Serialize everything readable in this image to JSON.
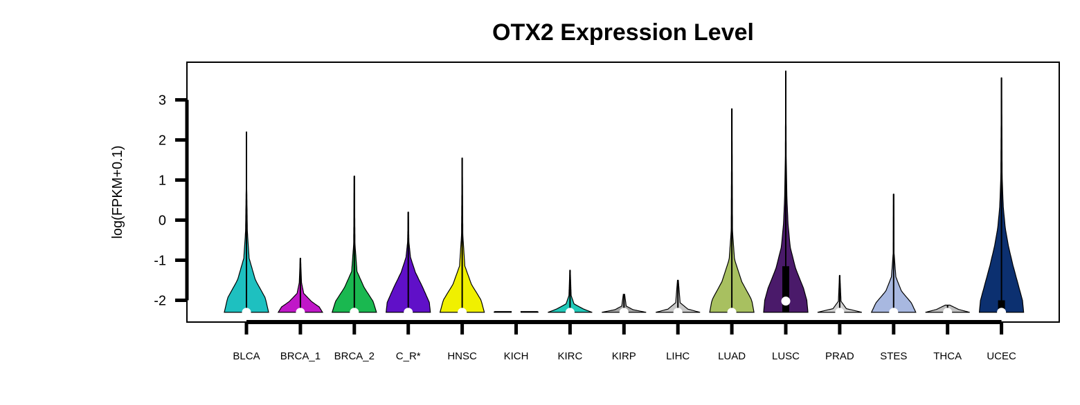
{
  "chart_data": {
    "type": "violin",
    "title": "OTX2 Expression Level",
    "ylabel": "log(FPKM+0.1)",
    "xlabel": "",
    "ylim": [
      -2.55,
      3.9
    ],
    "yticks": [
      -2,
      -1,
      0,
      1,
      2,
      3
    ],
    "legend": "none",
    "grid": false,
    "categories": [
      {
        "name": "BLCA",
        "color": "#1ec0c0",
        "min": -2.3,
        "max": 2.2,
        "median": -2.3,
        "q1": -2.3,
        "q3": -2.3,
        "shape": [
          [
            0,
            1.0
          ],
          [
            0.08,
            0.85
          ],
          [
            0.18,
            0.4
          ],
          [
            0.3,
            0.12
          ],
          [
            0.45,
            0.04
          ],
          [
            0.7,
            0.012
          ],
          [
            1.0,
            0.004
          ]
        ],
        "maxHalfWidth": 32
      },
      {
        "name": "BRCA_1",
        "color": "#c018c8",
        "min": -2.3,
        "max": -0.95,
        "median": -2.3,
        "q1": -2.3,
        "q3": -2.3,
        "shape": [
          [
            0,
            1.0
          ],
          [
            0.1,
            0.85
          ],
          [
            0.2,
            0.5
          ],
          [
            0.35,
            0.15
          ],
          [
            0.55,
            0.05
          ],
          [
            1.0,
            0.01
          ]
        ],
        "maxHalfWidth": 32
      },
      {
        "name": "BRCA_2",
        "color": "#1ab850",
        "min": -2.3,
        "max": 1.1,
        "median": -2.3,
        "q1": -2.3,
        "q3": -2.3,
        "shape": [
          [
            0,
            1.0
          ],
          [
            0.08,
            0.85
          ],
          [
            0.18,
            0.45
          ],
          [
            0.3,
            0.12
          ],
          [
            0.5,
            0.03
          ],
          [
            1.0,
            0.005
          ]
        ],
        "maxHalfWidth": 32
      },
      {
        "name": "C_R*",
        "color": "#6010c8",
        "min": -2.3,
        "max": 0.2,
        "median": -2.3,
        "q1": -2.3,
        "q3": -2.3,
        "shape": [
          [
            0,
            1.0
          ],
          [
            0.1,
            0.95
          ],
          [
            0.25,
            0.65
          ],
          [
            0.4,
            0.32
          ],
          [
            0.55,
            0.1
          ],
          [
            0.7,
            0.03
          ],
          [
            1.0,
            0.005
          ]
        ],
        "maxHalfWidth": 32
      },
      {
        "name": "HNSC",
        "color": "#f0f000",
        "min": -2.3,
        "max": 1.55,
        "median": -2.3,
        "q1": -2.3,
        "q3": -2.3,
        "shape": [
          [
            0,
            1.0
          ],
          [
            0.08,
            0.85
          ],
          [
            0.18,
            0.42
          ],
          [
            0.3,
            0.12
          ],
          [
            0.5,
            0.03
          ],
          [
            1.0,
            0.005
          ]
        ],
        "maxHalfWidth": 32
      },
      {
        "name": "KICH",
        "color": "#d8d8d8",
        "min": -2.3,
        "max": -2.28,
        "median": -2.3,
        "q1": -2.3,
        "q3": -2.3,
        "shape": [
          [
            0,
            1.0
          ],
          [
            1.0,
            0.95
          ]
        ],
        "maxHalfWidth": 32
      },
      {
        "name": "KIRC",
        "color": "#20c8b8",
        "min": -2.3,
        "max": -1.25,
        "median": -2.3,
        "q1": -2.3,
        "q3": -2.3,
        "shape": [
          [
            0,
            1.0
          ],
          [
            0.08,
            0.6
          ],
          [
            0.2,
            0.18
          ],
          [
            0.4,
            0.05
          ],
          [
            1.0,
            0.01
          ]
        ],
        "maxHalfWidth": 32
      },
      {
        "name": "KIRP",
        "color": "#a8a8a8",
        "min": -2.3,
        "max": -1.85,
        "median": -2.3,
        "q1": -2.3,
        "q3": -2.3,
        "shape": [
          [
            0,
            1.0
          ],
          [
            0.15,
            0.4
          ],
          [
            0.35,
            0.1
          ],
          [
            1.0,
            0.03
          ]
        ],
        "maxHalfWidth": 32
      },
      {
        "name": "LIHC",
        "color": "#c8c8c8",
        "min": -2.3,
        "max": -1.5,
        "median": -2.3,
        "q1": -2.3,
        "q3": -2.3,
        "shape": [
          [
            0,
            1.0
          ],
          [
            0.1,
            0.45
          ],
          [
            0.3,
            0.1
          ],
          [
            1.0,
            0.02
          ]
        ],
        "maxHalfWidth": 32
      },
      {
        "name": "LUAD",
        "color": "#a8c060",
        "min": -2.3,
        "max": 2.78,
        "median": -2.3,
        "q1": -2.3,
        "q3": -2.3,
        "shape": [
          [
            0,
            1.0
          ],
          [
            0.06,
            0.9
          ],
          [
            0.15,
            0.45
          ],
          [
            0.26,
            0.12
          ],
          [
            0.4,
            0.03
          ],
          [
            1.0,
            0.004
          ]
        ],
        "maxHalfWidth": 32
      },
      {
        "name": "LUSC",
        "color": "#4a1a6a",
        "min": -2.3,
        "max": 3.72,
        "median": -2.02,
        "q1": -2.3,
        "q3": -1.15,
        "shape": [
          [
            0,
            1.0
          ],
          [
            0.05,
            0.95
          ],
          [
            0.1,
            0.8
          ],
          [
            0.18,
            0.45
          ],
          [
            0.27,
            0.2
          ],
          [
            0.37,
            0.1
          ],
          [
            0.48,
            0.05
          ],
          [
            0.65,
            0.02
          ],
          [
            1.0,
            0.004
          ]
        ],
        "maxHalfWidth": 32
      },
      {
        "name": "PRAD",
        "color": "#d0d0d0",
        "min": -2.3,
        "max": -1.38,
        "median": -2.3,
        "q1": -2.3,
        "q3": -2.3,
        "shape": [
          [
            0,
            1.0
          ],
          [
            0.1,
            0.3
          ],
          [
            0.3,
            0.06
          ],
          [
            1.0,
            0.01
          ]
        ],
        "maxHalfWidth": 32
      },
      {
        "name": "STES",
        "color": "#a8b8e0",
        "min": -2.3,
        "max": 0.65,
        "median": -2.3,
        "q1": -2.3,
        "q3": -2.3,
        "shape": [
          [
            0,
            1.0
          ],
          [
            0.08,
            0.8
          ],
          [
            0.18,
            0.35
          ],
          [
            0.3,
            0.1
          ],
          [
            0.5,
            0.02
          ],
          [
            1.0,
            0.005
          ]
        ],
        "maxHalfWidth": 32
      },
      {
        "name": "THCA",
        "color": "#c0c0c0",
        "min": -2.3,
        "max": -2.12,
        "median": -2.3,
        "q1": -2.3,
        "q3": -2.3,
        "shape": [
          [
            0,
            1.0
          ],
          [
            0.4,
            0.5
          ],
          [
            1.0,
            0.1
          ]
        ],
        "maxHalfWidth": 32
      },
      {
        "name": "UCEC",
        "color": "#0c3070",
        "min": -2.3,
        "max": 3.55,
        "median": -2.3,
        "q1": -2.3,
        "q3": -2.0,
        "shape": [
          [
            0,
            1.0
          ],
          [
            0.05,
            0.95
          ],
          [
            0.12,
            0.75
          ],
          [
            0.2,
            0.52
          ],
          [
            0.28,
            0.32
          ],
          [
            0.36,
            0.17
          ],
          [
            0.45,
            0.08
          ],
          [
            0.58,
            0.03
          ],
          [
            1.0,
            0.005
          ]
        ],
        "maxHalfWidth": 32
      }
    ]
  }
}
